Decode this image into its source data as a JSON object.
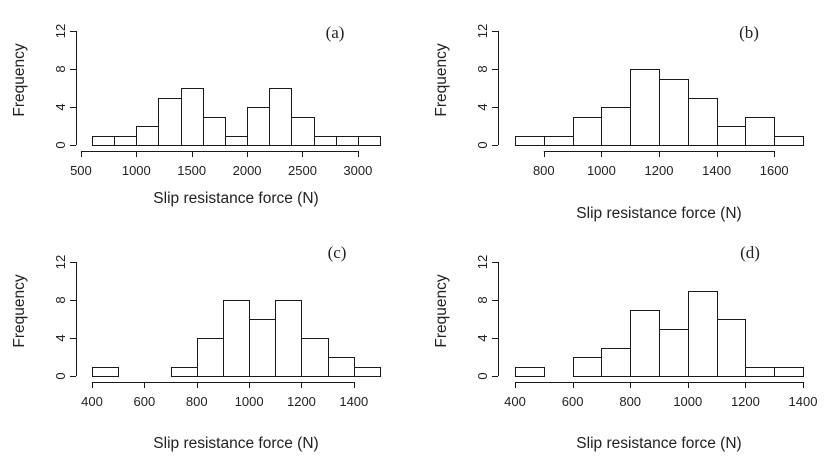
{
  "chart_data": [
    {
      "type": "bar",
      "panel_label": "(a)",
      "xlabel": "Slip resistance force (N)",
      "ylabel": "Frequency",
      "bin_edges": [
        600,
        800,
        1000,
        1200,
        1400,
        1600,
        1800,
        2000,
        2200,
        2400,
        2600,
        2800,
        3000,
        3200
      ],
      "values": [
        1,
        1,
        2,
        5,
        6,
        3,
        1,
        4,
        6,
        3,
        1,
        1,
        1
      ],
      "xlim": [
        600,
        3200
      ],
      "x_ticks": [
        500,
        1000,
        1500,
        2000,
        2500,
        3000
      ],
      "x_tick_labels": [
        "500",
        "1000",
        "1500",
        "2000",
        "2500",
        "3000"
      ],
      "ylim": [
        0,
        14
      ],
      "y_ticks": [
        0,
        4,
        8,
        12
      ],
      "y_tick_labels": [
        "0",
        "4",
        "8",
        "12"
      ]
    },
    {
      "type": "bar",
      "panel_label": "(b)",
      "xlabel": "Slip resistance force (N)",
      "ylabel": "Frequency",
      "bin_edges": [
        700,
        800,
        900,
        1000,
        1100,
        1200,
        1300,
        1400,
        1500,
        1600,
        1700
      ],
      "values": [
        1,
        1,
        3,
        4,
        8,
        7,
        5,
        2,
        3,
        1
      ],
      "xlim": [
        700,
        1700
      ],
      "x_ticks": [
        800,
        1000,
        1200,
        1400,
        1600
      ],
      "x_tick_labels": [
        "800",
        "1000",
        "1200",
        "1400",
        "1600"
      ],
      "ylim": [
        0,
        14
      ],
      "y_ticks": [
        0,
        4,
        8,
        12
      ],
      "y_tick_labels": [
        "0",
        "4",
        "8",
        "12"
      ]
    },
    {
      "type": "bar",
      "panel_label": "(c)",
      "xlabel": "Slip resistance force (N)",
      "ylabel": "Frequency",
      "bin_edges": [
        400,
        500,
        600,
        700,
        800,
        900,
        1000,
        1100,
        1200,
        1300,
        1400,
        1500
      ],
      "values": [
        1,
        0,
        0,
        1,
        4,
        8,
        6,
        8,
        4,
        2,
        1
      ],
      "xlim": [
        400,
        1500
      ],
      "x_ticks": [
        400,
        600,
        800,
        1000,
        1200,
        1400
      ],
      "x_tick_labels": [
        "400",
        "600",
        "800",
        "1000",
        "1200",
        "1400"
      ],
      "ylim": [
        0,
        14
      ],
      "y_ticks": [
        0,
        4,
        8,
        12
      ],
      "y_tick_labels": [
        "0",
        "4",
        "8",
        "12"
      ]
    },
    {
      "type": "bar",
      "panel_label": "(d)",
      "xlabel": "Slip resistance force (N)",
      "ylabel": "Frequency",
      "bin_edges": [
        400,
        500,
        600,
        700,
        800,
        900,
        1000,
        1100,
        1200,
        1300,
        1400
      ],
      "values": [
        1,
        0,
        2,
        3,
        7,
        5,
        9,
        6,
        1,
        1
      ],
      "xlim": [
        400,
        1400
      ],
      "x_ticks": [
        400,
        600,
        800,
        1000,
        1200,
        1400
      ],
      "x_tick_labels": [
        "400",
        "600",
        "800",
        "1000",
        "1200",
        "1400"
      ],
      "ylim": [
        0,
        14
      ],
      "y_ticks": [
        0,
        4,
        8,
        12
      ],
      "y_tick_labels": [
        "0",
        "4",
        "8",
        "12"
      ]
    }
  ]
}
